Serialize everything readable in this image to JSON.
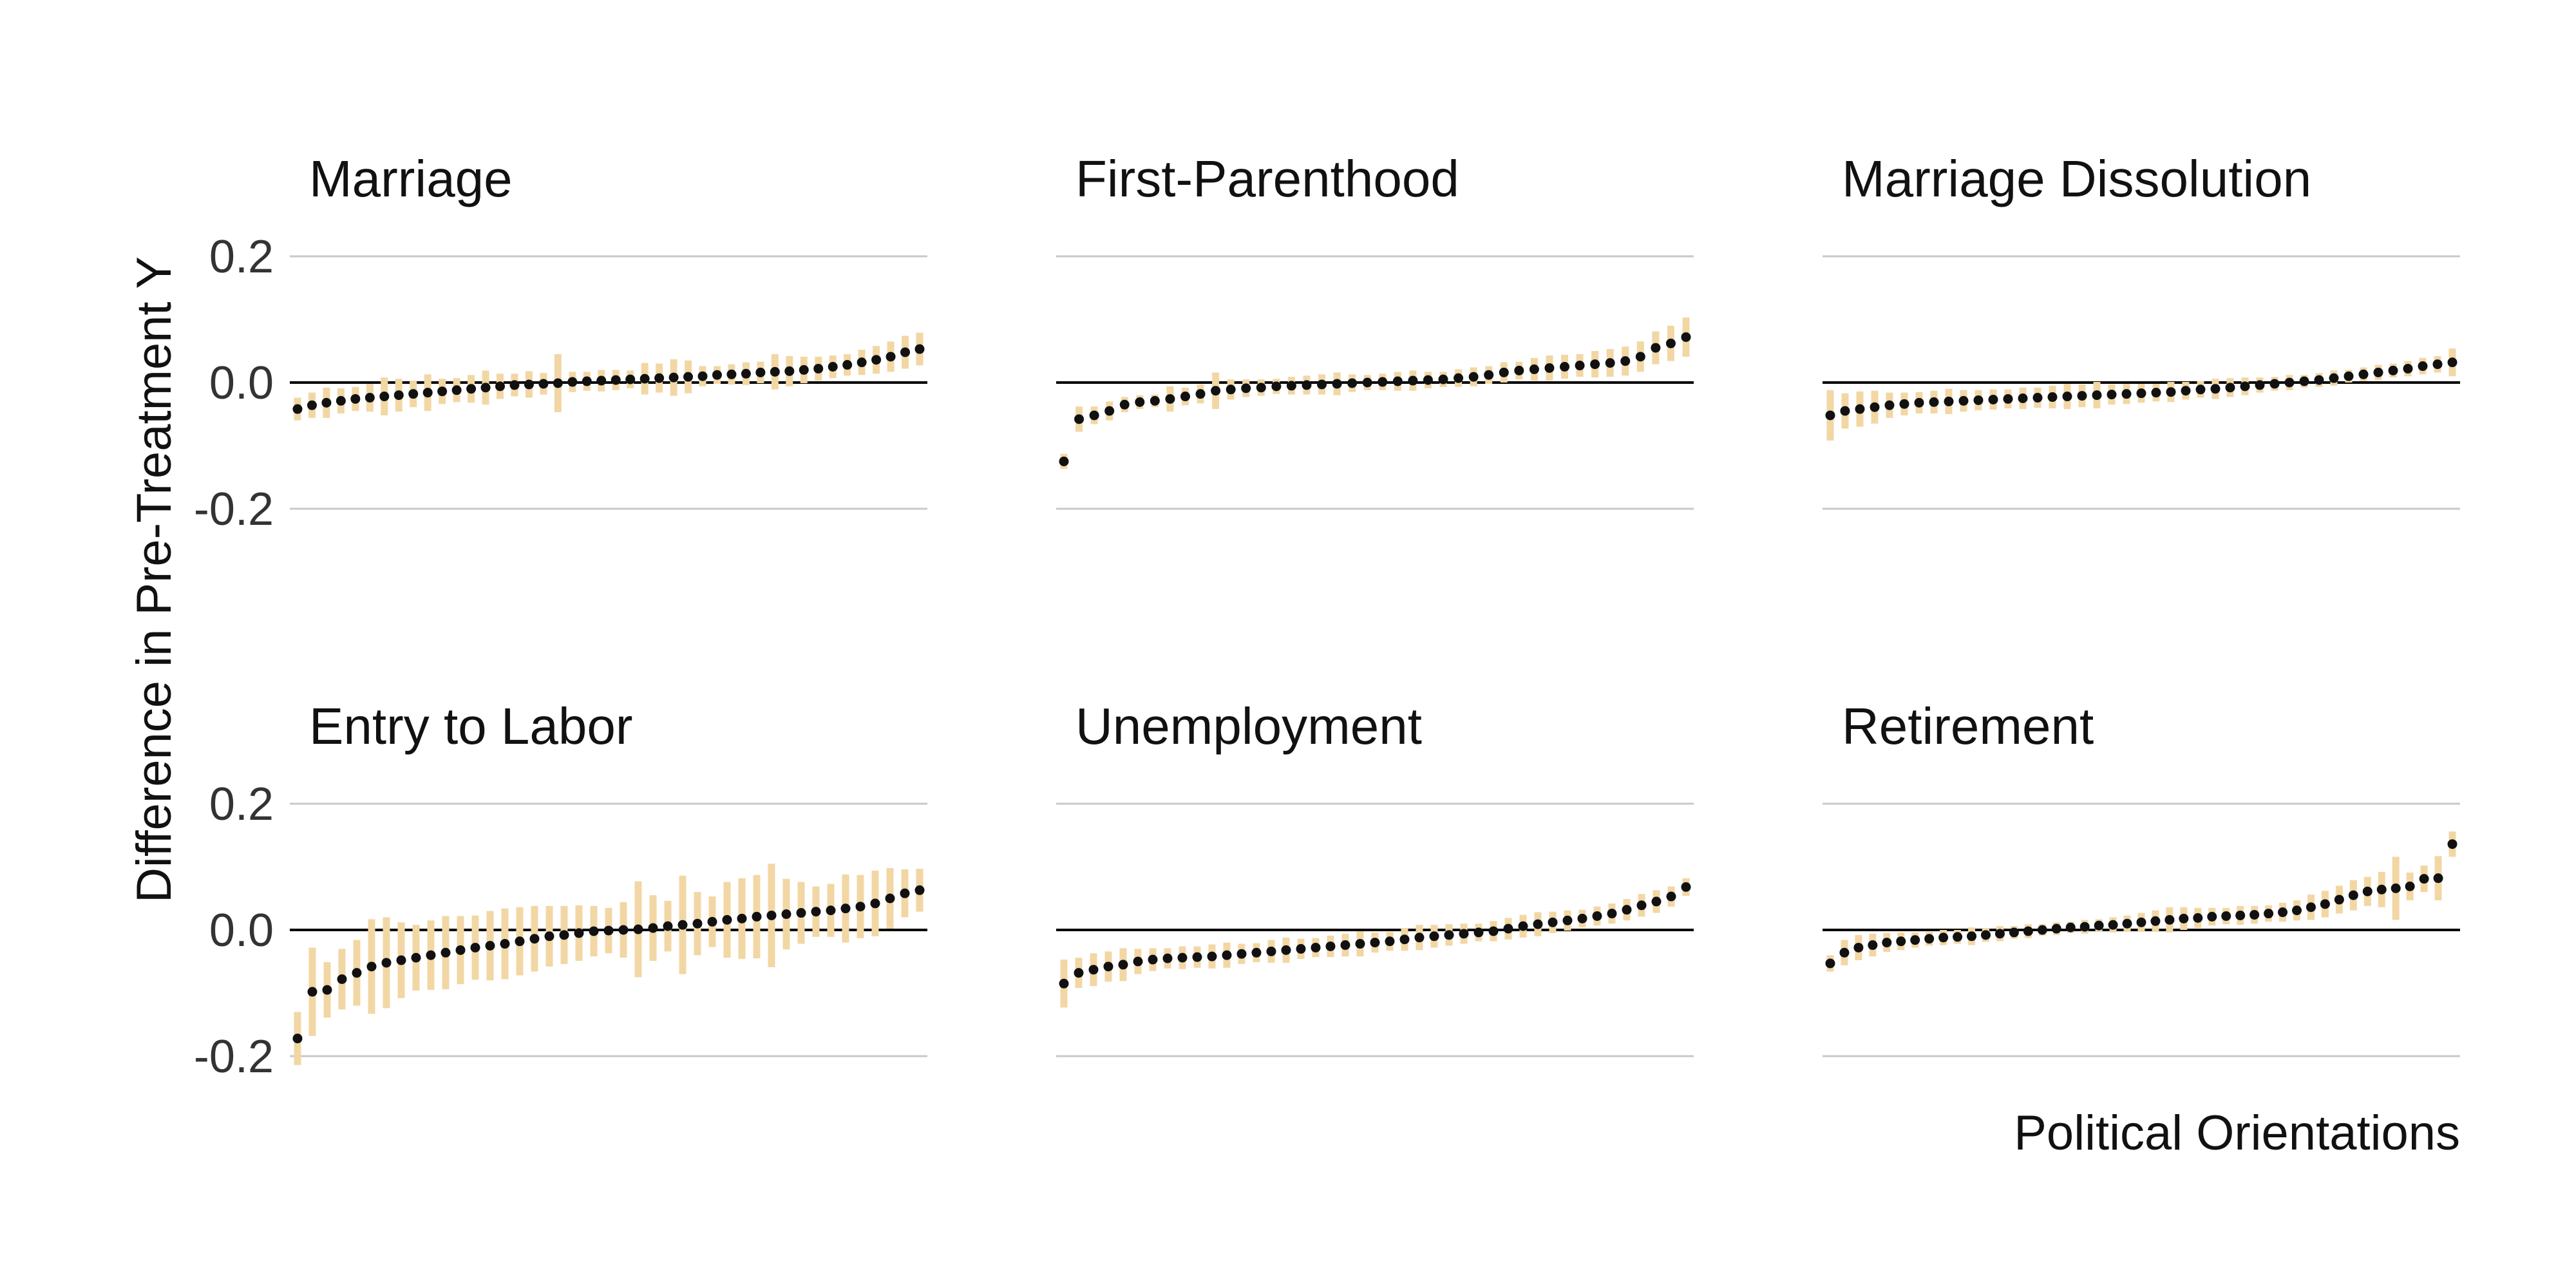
{
  "chart_data": {
    "type": "scatter",
    "title": "",
    "xlabel": "Political Orientations",
    "ylabel": "Difference in Pre-Treatment Y",
    "ylim": [
      -0.2,
      0.2
    ],
    "yticks": [
      "0.2",
      "0.0",
      "-0.2"
    ],
    "grid": "horizontal",
    "zero_line": true,
    "colors": {
      "point": "#111111",
      "interval": "#f2d7a4",
      "grid": "#c8c8c8",
      "zero": "#000000"
    },
    "panels": [
      {
        "title": "Marriage",
        "points": [
          [
            -0.042,
            0.018
          ],
          [
            -0.036,
            0.02
          ],
          [
            -0.032,
            0.024
          ],
          [
            -0.029,
            0.02
          ],
          [
            -0.026,
            0.019
          ],
          [
            -0.024,
            0.022
          ],
          [
            -0.022,
            0.03
          ],
          [
            -0.02,
            0.026
          ],
          [
            -0.018,
            0.021
          ],
          [
            -0.016,
            0.029
          ],
          [
            -0.014,
            0.02
          ],
          [
            -0.012,
            0.019
          ],
          [
            -0.01,
            0.022
          ],
          [
            -0.008,
            0.027
          ],
          [
            -0.006,
            0.02
          ],
          [
            -0.004,
            0.018
          ],
          [
            -0.003,
            0.021
          ],
          [
            -0.002,
            0.017
          ],
          [
            -0.001,
            0.046
          ],
          [
            0.001,
            0.016
          ],
          [
            0.002,
            0.015
          ],
          [
            0.003,
            0.017
          ],
          [
            0.004,
            0.016
          ],
          [
            0.005,
            0.014
          ],
          [
            0.006,
            0.025
          ],
          [
            0.007,
            0.023
          ],
          [
            0.008,
            0.029
          ],
          [
            0.009,
            0.026
          ],
          [
            0.01,
            0.016
          ],
          [
            0.012,
            0.014
          ],
          [
            0.013,
            0.016
          ],
          [
            0.014,
            0.018
          ],
          [
            0.016,
            0.017
          ],
          [
            0.017,
            0.028
          ],
          [
            0.018,
            0.024
          ],
          [
            0.02,
            0.021
          ],
          [
            0.022,
            0.019
          ],
          [
            0.025,
            0.018
          ],
          [
            0.028,
            0.017
          ],
          [
            0.032,
            0.02
          ],
          [
            0.036,
            0.022
          ],
          [
            0.041,
            0.024
          ],
          [
            0.048,
            0.026
          ],
          [
            0.053,
            0.026
          ]
        ]
      },
      {
        "title": "First-Parenthood",
        "points": [
          [
            -0.125,
            0.012
          ],
          [
            -0.058,
            0.02
          ],
          [
            -0.052,
            0.014
          ],
          [
            -0.045,
            0.015
          ],
          [
            -0.035,
            0.012
          ],
          [
            -0.031,
            0.011
          ],
          [
            -0.029,
            0.01
          ],
          [
            -0.026,
            0.02
          ],
          [
            -0.022,
            0.014
          ],
          [
            -0.018,
            0.015
          ],
          [
            -0.013,
            0.029
          ],
          [
            -0.011,
            0.016
          ],
          [
            -0.009,
            0.014
          ],
          [
            -0.008,
            0.013
          ],
          [
            -0.006,
            0.012
          ],
          [
            -0.005,
            0.014
          ],
          [
            -0.004,
            0.015
          ],
          [
            -0.003,
            0.016
          ],
          [
            -0.002,
            0.018
          ],
          [
            -0.001,
            0.014
          ],
          [
            0.0,
            0.012
          ],
          [
            0.001,
            0.013
          ],
          [
            0.002,
            0.015
          ],
          [
            0.003,
            0.016
          ],
          [
            0.004,
            0.013
          ],
          [
            0.005,
            0.012
          ],
          [
            0.007,
            0.014
          ],
          [
            0.009,
            0.015
          ],
          [
            0.012,
            0.014
          ],
          [
            0.016,
            0.016
          ],
          [
            0.019,
            0.014
          ],
          [
            0.021,
            0.018
          ],
          [
            0.023,
            0.02
          ],
          [
            0.025,
            0.019
          ],
          [
            0.027,
            0.018
          ],
          [
            0.029,
            0.021
          ],
          [
            0.031,
            0.022
          ],
          [
            0.034,
            0.023
          ],
          [
            0.041,
            0.024
          ],
          [
            0.055,
            0.026
          ],
          [
            0.062,
            0.028
          ],
          [
            0.072,
            0.031
          ]
        ]
      },
      {
        "title": "Marriage Dissolution",
        "points": [
          [
            -0.052,
            0.04
          ],
          [
            -0.045,
            0.028
          ],
          [
            -0.042,
            0.028
          ],
          [
            -0.039,
            0.026
          ],
          [
            -0.036,
            0.02
          ],
          [
            -0.034,
            0.018
          ],
          [
            -0.032,
            0.017
          ],
          [
            -0.031,
            0.018
          ],
          [
            -0.03,
            0.02
          ],
          [
            -0.029,
            0.017
          ],
          [
            -0.028,
            0.016
          ],
          [
            -0.027,
            0.016
          ],
          [
            -0.026,
            0.015
          ],
          [
            -0.025,
            0.017
          ],
          [
            -0.024,
            0.016
          ],
          [
            -0.023,
            0.018
          ],
          [
            -0.022,
            0.02
          ],
          [
            -0.021,
            0.018
          ],
          [
            -0.02,
            0.021
          ],
          [
            -0.019,
            0.016
          ],
          [
            -0.018,
            0.016
          ],
          [
            -0.017,
            0.015
          ],
          [
            -0.016,
            0.014
          ],
          [
            -0.015,
            0.016
          ],
          [
            -0.013,
            0.014
          ],
          [
            -0.011,
            0.013
          ],
          [
            -0.01,
            0.016
          ],
          [
            -0.008,
            0.015
          ],
          [
            -0.006,
            0.014
          ],
          [
            -0.004,
            0.012
          ],
          [
            -0.002,
            0.011
          ],
          [
            0.0,
            0.012
          ],
          [
            0.002,
            0.01
          ],
          [
            0.004,
            0.011
          ],
          [
            0.007,
            0.012
          ],
          [
            0.01,
            0.01
          ],
          [
            0.013,
            0.011
          ],
          [
            0.016,
            0.012
          ],
          [
            0.019,
            0.011
          ],
          [
            0.022,
            0.012
          ],
          [
            0.026,
            0.013
          ],
          [
            0.029,
            0.013
          ],
          [
            0.032,
            0.022
          ]
        ]
      },
      {
        "title": "Entry to Labor",
        "points": [
          [
            -0.172,
            0.042
          ],
          [
            -0.098,
            0.07
          ],
          [
            -0.095,
            0.044
          ],
          [
            -0.078,
            0.048
          ],
          [
            -0.068,
            0.052
          ],
          [
            -0.058,
            0.075
          ],
          [
            -0.052,
            0.072
          ],
          [
            -0.048,
            0.06
          ],
          [
            -0.044,
            0.052
          ],
          [
            -0.04,
            0.055
          ],
          [
            -0.036,
            0.058
          ],
          [
            -0.032,
            0.054
          ],
          [
            -0.028,
            0.051
          ],
          [
            -0.025,
            0.055
          ],
          [
            -0.022,
            0.056
          ],
          [
            -0.018,
            0.054
          ],
          [
            -0.014,
            0.052
          ],
          [
            -0.01,
            0.048
          ],
          [
            -0.008,
            0.046
          ],
          [
            -0.005,
            0.044
          ],
          [
            -0.002,
            0.04
          ],
          [
            -0.001,
            0.036
          ],
          [
            0.0,
            0.044
          ],
          [
            0.001,
            0.076
          ],
          [
            0.003,
            0.052
          ],
          [
            0.006,
            0.04
          ],
          [
            0.008,
            0.078
          ],
          [
            0.01,
            0.05
          ],
          [
            0.013,
            0.04
          ],
          [
            0.016,
            0.06
          ],
          [
            0.018,
            0.064
          ],
          [
            0.021,
            0.066
          ],
          [
            0.023,
            0.082
          ],
          [
            0.025,
            0.056
          ],
          [
            0.027,
            0.049
          ],
          [
            0.029,
            0.04
          ],
          [
            0.031,
            0.042
          ],
          [
            0.034,
            0.054
          ],
          [
            0.037,
            0.05
          ],
          [
            0.042,
            0.052
          ],
          [
            0.05,
            0.048
          ],
          [
            0.058,
            0.038
          ],
          [
            0.063,
            0.034
          ]
        ]
      },
      {
        "title": "Unemployment",
        "points": [
          [
            -0.085,
            0.038
          ],
          [
            -0.068,
            0.024
          ],
          [
            -0.063,
            0.026
          ],
          [
            -0.058,
            0.024
          ],
          [
            -0.055,
            0.026
          ],
          [
            -0.05,
            0.02
          ],
          [
            -0.047,
            0.018
          ],
          [
            -0.045,
            0.016
          ],
          [
            -0.044,
            0.018
          ],
          [
            -0.043,
            0.017
          ],
          [
            -0.042,
            0.019
          ],
          [
            -0.04,
            0.02
          ],
          [
            -0.038,
            0.016
          ],
          [
            -0.036,
            0.015
          ],
          [
            -0.034,
            0.018
          ],
          [
            -0.032,
            0.02
          ],
          [
            -0.03,
            0.016
          ],
          [
            -0.028,
            0.015
          ],
          [
            -0.026,
            0.017
          ],
          [
            -0.024,
            0.018
          ],
          [
            -0.022,
            0.02
          ],
          [
            -0.02,
            0.016
          ],
          [
            -0.018,
            0.015
          ],
          [
            -0.015,
            0.018
          ],
          [
            -0.012,
            0.02
          ],
          [
            -0.01,
            0.018
          ],
          [
            -0.008,
            0.017
          ],
          [
            -0.006,
            0.016
          ],
          [
            -0.004,
            0.014
          ],
          [
            -0.002,
            0.016
          ],
          [
            0.002,
            0.017
          ],
          [
            0.006,
            0.018
          ],
          [
            0.009,
            0.019
          ],
          [
            0.012,
            0.017
          ],
          [
            0.015,
            0.016
          ],
          [
            0.018,
            0.014
          ],
          [
            0.022,
            0.015
          ],
          [
            0.026,
            0.016
          ],
          [
            0.032,
            0.017
          ],
          [
            0.039,
            0.018
          ],
          [
            0.045,
            0.018
          ],
          [
            0.053,
            0.016
          ],
          [
            0.068,
            0.014
          ]
        ]
      },
      {
        "title": "Retirement",
        "points": [
          [
            -0.053,
            0.013
          ],
          [
            -0.036,
            0.02
          ],
          [
            -0.028,
            0.02
          ],
          [
            -0.024,
            0.018
          ],
          [
            -0.02,
            0.015
          ],
          [
            -0.018,
            0.014
          ],
          [
            -0.016,
            0.012
          ],
          [
            -0.014,
            0.011
          ],
          [
            -0.012,
            0.012
          ],
          [
            -0.011,
            0.011
          ],
          [
            -0.01,
            0.014
          ],
          [
            -0.008,
            0.011
          ],
          [
            -0.006,
            0.012
          ],
          [
            -0.004,
            0.01
          ],
          [
            -0.002,
            0.011
          ],
          [
            0.0,
            0.009
          ],
          [
            0.002,
            0.01
          ],
          [
            0.004,
            0.009
          ],
          [
            0.005,
            0.011
          ],
          [
            0.007,
            0.01
          ],
          [
            0.008,
            0.012
          ],
          [
            0.01,
            0.013
          ],
          [
            0.012,
            0.015
          ],
          [
            0.014,
            0.017
          ],
          [
            0.016,
            0.02
          ],
          [
            0.018,
            0.018
          ],
          [
            0.019,
            0.016
          ],
          [
            0.021,
            0.014
          ],
          [
            0.022,
            0.013
          ],
          [
            0.023,
            0.015
          ],
          [
            0.024,
            0.014
          ],
          [
            0.026,
            0.013
          ],
          [
            0.028,
            0.015
          ],
          [
            0.031,
            0.016
          ],
          [
            0.036,
            0.02
          ],
          [
            0.041,
            0.021
          ],
          [
            0.048,
            0.022
          ],
          [
            0.055,
            0.024
          ],
          [
            0.061,
            0.023
          ],
          [
            0.064,
            0.028
          ],
          [
            0.066,
            0.05
          ],
          [
            0.069,
            0.022
          ],
          [
            0.081,
            0.021
          ],
          [
            0.082,
            0.035
          ],
          [
            0.136,
            0.02
          ]
        ]
      }
    ]
  }
}
